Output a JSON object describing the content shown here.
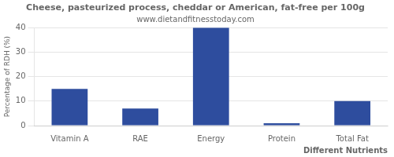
{
  "chart_data": {
    "type": "bar",
    "title": "Cheese, pasteurized process, cheddar or American, fat-free per 100g",
    "subtitle": "www.dietandfitnesstoday.com",
    "xlabel": "Different Nutrients",
    "ylabel": "Percentage of RDH (%)",
    "categories": [
      "Vitamin A",
      "RAE",
      "Energy",
      "Protein",
      "Total Fat"
    ],
    "values": [
      15,
      7,
      40,
      1,
      10
    ],
    "color": "#2e4d9e",
    "ylim": [
      0,
      40
    ],
    "yticks": [
      0,
      10,
      20,
      30,
      40
    ],
    "grid": true
  }
}
